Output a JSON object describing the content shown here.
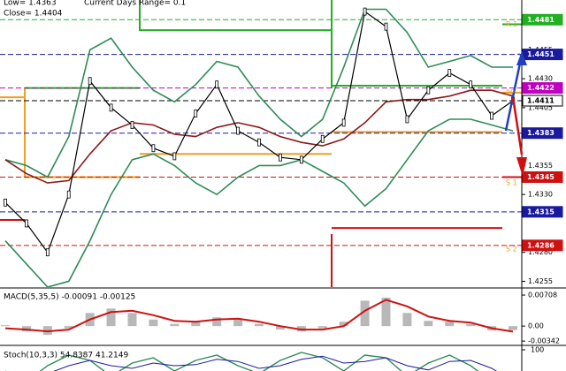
{
  "header": {
    "low": "Low= 1.4363",
    "range": "Current Days Range= 0.1",
    "close": "Close= 1.4404"
  },
  "price": {
    "ylim": [
      1.425,
      1.4498
    ],
    "yticks": [
      1.4455,
      {
        "value": 1.443,
        "label": "1.4430"
      },
      1.4405,
      1.4355,
      {
        "value": 1.433,
        "label": "1.4330"
      },
      {
        "value": 1.428,
        "label": "1.4280"
      },
      1.4255
    ],
    "levels": [
      {
        "value": 1.4481,
        "color": "#22b022"
      },
      {
        "value": 1.4451,
        "color": "#1a1aa0"
      },
      {
        "value": 1.4422,
        "color": "#c000c0"
      },
      {
        "value": 1.4411,
        "color": "#000000"
      },
      {
        "value": 1.4383,
        "color": "#1a1aa0"
      },
      {
        "value": 1.4345,
        "color": "#d01010"
      },
      {
        "value": 1.4315,
        "color": "#1a1aa0"
      },
      {
        "value": 1.4286,
        "color": "#d01010"
      }
    ],
    "annotations": [
      {
        "text": "R 1",
        "value": 1.4477,
        "color": "#e0a020"
      },
      {
        "text": "PP",
        "value": 1.4418,
        "color": "#e0a020"
      },
      {
        "text": "S 1",
        "value": 1.434,
        "color": "#e0a020"
      },
      {
        "text": "S 2",
        "value": 1.4283,
        "color": "#e0a020"
      }
    ],
    "close": [
      1.4323,
      1.4305,
      1.428,
      1.433,
      1.4428,
      1.4405,
      1.439,
      1.437,
      1.4363,
      1.44,
      1.4425,
      1.4385,
      1.4375,
      1.4362,
      1.436,
      1.4378,
      1.4392,
      1.4488,
      1.4475,
      1.4395,
      1.442,
      1.4435,
      1.4425,
      1.4398,
      1.4411
    ],
    "bands": [
      {
        "color": "#2e8b57",
        "values": [
          1.436,
          1.4355,
          1.4345,
          1.438,
          1.4455,
          1.4465,
          1.444,
          1.442,
          1.441,
          1.4425,
          1.4445,
          1.444,
          1.4415,
          1.4395,
          1.438,
          1.4395,
          1.444,
          1.449,
          1.449,
          1.447,
          1.444,
          1.4445,
          1.445,
          1.444,
          1.444
        ]
      },
      {
        "color": "#8b1a1a",
        "values": [
          1.436,
          1.4348,
          1.434,
          1.4342,
          1.4365,
          1.4385,
          1.4392,
          1.439,
          1.4382,
          1.438,
          1.4388,
          1.4392,
          1.4388,
          1.438,
          1.4375,
          1.4372,
          1.4378,
          1.4392,
          1.441,
          1.4412,
          1.4412,
          1.4415,
          1.442,
          1.442,
          1.4415
        ]
      },
      {
        "color": "#2e8b57",
        "values": [
          1.429,
          1.427,
          1.425,
          1.4255,
          1.429,
          1.433,
          1.436,
          1.4365,
          1.4355,
          1.434,
          1.433,
          1.4345,
          1.4355,
          1.4355,
          1.436,
          1.435,
          1.434,
          1.432,
          1.4335,
          1.436,
          1.4385,
          1.4395,
          1.4395,
          1.439,
          1.4385
        ]
      }
    ],
    "pivots": [
      {
        "color": "#22b022",
        "values": [
          null,
          1.4422,
          1.4472,
          1.4424,
          1.4477
        ]
      },
      {
        "color": "#f0a020",
        "values": [
          1.4414,
          1.4345,
          1.4365,
          1.4384,
          1.4418
        ]
      },
      {
        "color": "#d01010",
        "values": [
          1.4308,
          null,
          null,
          1.4301,
          1.4345
        ]
      }
    ]
  },
  "macd": {
    "title": "MACD(5,35,5) -0.00091 -0.00125",
    "ylim": [
      -0.0042,
      0.0085
    ],
    "yticks": [
      0.00708,
      {
        "value": 0,
        "label": "0.00"
      },
      -0.00342
    ],
    "histogram": [
      0.0002,
      -0.0012,
      -0.002,
      -0.0005,
      0.003,
      0.004,
      0.003,
      0.0015,
      0.0005,
      0.0012,
      0.002,
      0.0015,
      0.0005,
      -0.0008,
      -0.0012,
      -0.0005,
      0.001,
      0.0058,
      0.0065,
      0.003,
      0.0012,
      0.001,
      0.0005,
      -0.001,
      -0.00091
    ],
    "signal": [
      -0.0005,
      -0.0008,
      -0.0012,
      -0.0008,
      0.0015,
      0.0032,
      0.0035,
      0.0025,
      0.0012,
      0.001,
      0.0015,
      0.0017,
      0.001,
      0,
      -0.0008,
      -0.0008,
      0,
      0.0035,
      0.006,
      0.0045,
      0.0022,
      0.0012,
      0.0008,
      -0.0005,
      -0.00125
    ]
  },
  "stoch": {
    "title": "Stoch(10,3,3) 54.8387 41.2149",
    "ylim": [
      0,
      100
    ],
    "yticks": [
      100
    ],
    "k": [
      60,
      40,
      70,
      90,
      80,
      50,
      75,
      85,
      60,
      80,
      90,
      70,
      55,
      80,
      95,
      85,
      60,
      90,
      85,
      50,
      75,
      90,
      70,
      40,
      54.8387
    ],
    "d": [
      55,
      50,
      55,
      70,
      80,
      70,
      65,
      75,
      70,
      72,
      82,
      78,
      65,
      70,
      82,
      88,
      75,
      78,
      85,
      70,
      62,
      78,
      80,
      65,
      41.2149
    ]
  }
}
